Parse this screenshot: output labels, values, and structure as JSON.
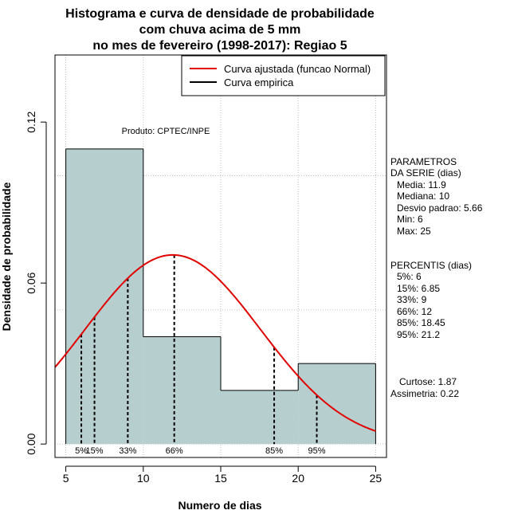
{
  "chart_data": {
    "type": "histogram",
    "title": [
      "Histograma e curva de densidade de probabilidade",
      "com chuva acima de 5 mm",
      "no mes de fevereiro (1998-2017): Regiao 5"
    ],
    "xlabel": "Numero de dias",
    "ylabel": "Densidade de probabilidade",
    "xlim": [
      4.3,
      25.7
    ],
    "ylim": [
      -0.005,
      0.145
    ],
    "xticks": [
      5,
      10,
      15,
      20,
      25
    ],
    "yticks": [
      0.0,
      0.06,
      0.12
    ],
    "ytick_labels": [
      "0.00",
      "0.06",
      "0.12"
    ],
    "grid_x": [
      5,
      10,
      15,
      20,
      25
    ],
    "grid_y": [
      0.0,
      0.05,
      0.1
    ],
    "bins": [
      {
        "from": 5,
        "to": 10,
        "density": 0.11
      },
      {
        "from": 10,
        "to": 15,
        "density": 0.04
      },
      {
        "from": 15,
        "to": 20,
        "density": 0.02
      },
      {
        "from": 20,
        "to": 25,
        "density": 0.03
      }
    ],
    "bar_color": "#b7cecf",
    "normal_curve": {
      "mean": 11.9,
      "sd": 5.66,
      "x_from": 4.3,
      "x_to": 25,
      "color": "#e00000"
    },
    "percentile_lines": [
      {
        "label": "5%",
        "x": 6
      },
      {
        "label": "15%",
        "x": 6.85
      },
      {
        "label": "33%",
        "x": 9
      },
      {
        "label": "66%",
        "x": 12
      },
      {
        "label": "85%",
        "x": 18.45
      },
      {
        "label": "95%",
        "x": 21.2
      }
    ],
    "legend": {
      "position": "top-right",
      "entries": [
        {
          "label": "Curva ajustada (funcao Normal)",
          "color": "#e00000"
        },
        {
          "label": "Curva empirica",
          "color": "#000000"
        }
      ]
    },
    "source_note": "Produto: CPTEC/INPE"
  },
  "side_panel": {
    "params_title": [
      "PARAMETROS",
      "DA SERIE (dias)"
    ],
    "params": [
      "Media: 11.9",
      "Mediana: 10",
      "Desvio padrao: 5.66",
      "Min: 6",
      "Max: 25"
    ],
    "percentis_title": "PERCENTIS (dias)",
    "percentis": [
      "5%: 6",
      "15%: 6.85",
      "33%: 9",
      "66%: 12",
      "85%: 18.45",
      "95%: 21.2"
    ],
    "curtose": "Curtose: 1.87",
    "assimetria": "Assimetria: 0.22"
  }
}
